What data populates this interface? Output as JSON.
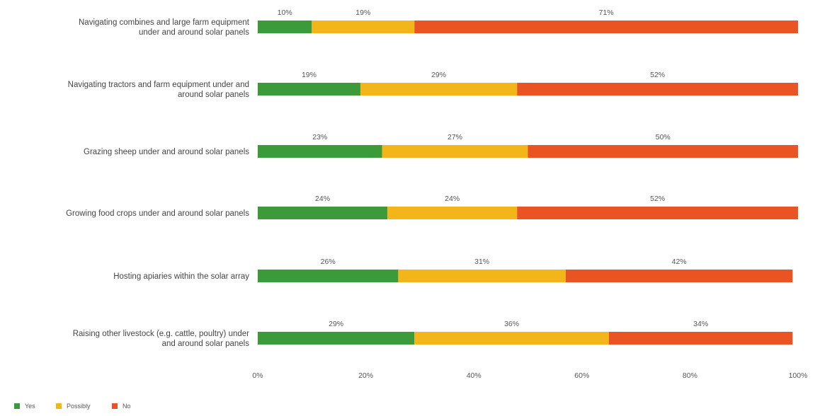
{
  "chart_data": {
    "type": "bar",
    "orientation": "horizontal",
    "stacked": true,
    "categories": [
      [
        "Navigating combines and large farm equipment",
        "under and around solar panels"
      ],
      [
        "Navigating tractors and farm equipment under and",
        "around solar panels"
      ],
      [
        "Grazing sheep under and around solar panels"
      ],
      [
        "Growing food crops under and around solar panels"
      ],
      [
        "Hosting apiaries within the solar array"
      ],
      [
        "Raising other livestock (e.g. cattle, poultry) under",
        "and around solar panels"
      ]
    ],
    "series": [
      {
        "name": "Yes",
        "color": "#3d9a3a",
        "values": [
          10,
          19,
          23,
          24,
          26,
          29
        ],
        "labels": [
          "10%",
          "19%",
          "23%",
          "24%",
          "26%",
          "29%"
        ]
      },
      {
        "name": "Possibly",
        "color": "#f2b51a",
        "values": [
          19,
          29,
          27,
          24,
          31,
          36
        ],
        "labels": [
          "19%",
          "29%",
          "27%",
          "24%",
          "31%",
          "36%"
        ]
      },
      {
        "name": "No",
        "color": "#ea5323",
        "values": [
          71,
          52,
          50,
          52,
          42,
          34
        ],
        "labels": [
          "71%",
          "52%",
          "50%",
          "52%",
          "42%",
          "34%"
        ]
      }
    ],
    "xlim": [
      0,
      100
    ],
    "xticks": [
      0,
      20,
      40,
      60,
      80,
      100
    ],
    "xtick_labels": [
      "0%",
      "20%",
      "40%",
      "60%",
      "80%",
      "100%"
    ],
    "title": "",
    "xlabel": "",
    "ylabel": "",
    "grid": false,
    "legend": "bottom-left"
  }
}
